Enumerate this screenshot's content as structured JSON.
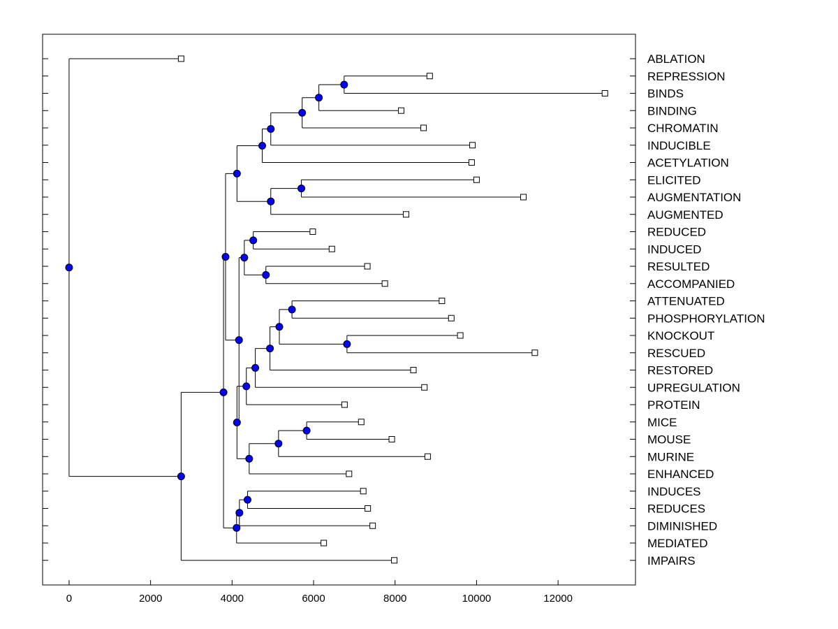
{
  "chart_data": {
    "type": "dendrogram",
    "orientation": "horizontal",
    "xlim": [
      -650,
      13900
    ],
    "x_ticks": [
      "0",
      "2000",
      "4000",
      "6000",
      "8000",
      "10000",
      "12000"
    ],
    "x_tick_values": [
      0,
      2000,
      4000,
      6000,
      8000,
      10000,
      12000
    ],
    "leaves": [
      {
        "label": "ABLATION",
        "x": 2750
      },
      {
        "label": "REPRESSION",
        "x": 8850
      },
      {
        "label": "BINDS",
        "x": 13150
      },
      {
        "label": "BINDING",
        "x": 8150
      },
      {
        "label": "CHROMATIN",
        "x": 8700
      },
      {
        "label": "INDUCIBLE",
        "x": 9900
      },
      {
        "label": "ACETYLATION",
        "x": 9880
      },
      {
        "label": "ELICITED",
        "x": 10000
      },
      {
        "label": "AUGMENTATION",
        "x": 11150
      },
      {
        "label": "AUGMENTED",
        "x": 8270
      },
      {
        "label": "REDUCED",
        "x": 5980
      },
      {
        "label": "INDUCED",
        "x": 6450
      },
      {
        "label": "RESULTED",
        "x": 7320
      },
      {
        "label": "ACCOMPANIED",
        "x": 7750
      },
      {
        "label": "ATTENUATED",
        "x": 9150
      },
      {
        "label": "PHOSPHORYLATION",
        "x": 9380
      },
      {
        "label": "KNOCKOUT",
        "x": 9600
      },
      {
        "label": "RESCUED",
        "x": 11430
      },
      {
        "label": "RESTORED",
        "x": 8450
      },
      {
        "label": "UPREGULATION",
        "x": 8720
      },
      {
        "label": "PROTEIN",
        "x": 6760
      },
      {
        "label": "MICE",
        "x": 7170
      },
      {
        "label": "MOUSE",
        "x": 7920
      },
      {
        "label": "MURINE",
        "x": 8800
      },
      {
        "label": "ENHANCED",
        "x": 6870
      },
      {
        "label": "INDUCES",
        "x": 7220
      },
      {
        "label": "REDUCES",
        "x": 7330
      },
      {
        "label": "DIMINISHED",
        "x": 7450
      },
      {
        "label": "MEDIATED",
        "x": 6250
      },
      {
        "label": "IMPAIRS",
        "x": 7980
      }
    ],
    "merges": [
      {
        "id": "n1",
        "x": 6750,
        "children": [
          "l1",
          "l2"
        ]
      },
      {
        "id": "n2",
        "x": 6130,
        "children": [
          "n1",
          "l3"
        ]
      },
      {
        "id": "n3",
        "x": 5720,
        "children": [
          "n2",
          "l4"
        ]
      },
      {
        "id": "n4",
        "x": 4950,
        "children": [
          "n3",
          "l5"
        ]
      },
      {
        "id": "n5",
        "x": 4740,
        "children": [
          "n4",
          "l6"
        ]
      },
      {
        "id": "n6",
        "x": 5700,
        "children": [
          "l7",
          "l8"
        ]
      },
      {
        "id": "n7",
        "x": 4950,
        "children": [
          "n6",
          "l9"
        ]
      },
      {
        "id": "n8",
        "x": 4120,
        "children": [
          "n5",
          "n7"
        ]
      },
      {
        "id": "n9",
        "x": 4520,
        "children": [
          "l10",
          "l11"
        ]
      },
      {
        "id": "n10",
        "x": 4830,
        "children": [
          "l12",
          "l13"
        ]
      },
      {
        "id": "n11",
        "x": 4300,
        "children": [
          "n9",
          "n10"
        ]
      },
      {
        "id": "n12",
        "x": 5470,
        "children": [
          "l14",
          "l15"
        ]
      },
      {
        "id": "n13",
        "x": 6820,
        "children": [
          "l16",
          "l17"
        ]
      },
      {
        "id": "n14",
        "x": 5160,
        "children": [
          "n12",
          "n13"
        ]
      },
      {
        "id": "n15",
        "x": 4930,
        "children": [
          "n14",
          "l18"
        ]
      },
      {
        "id": "n16",
        "x": 4570,
        "children": [
          "n15",
          "l19"
        ]
      },
      {
        "id": "n17",
        "x": 4350,
        "children": [
          "n16",
          "l20"
        ]
      },
      {
        "id": "n18",
        "x": 5830,
        "children": [
          "l21",
          "l22"
        ]
      },
      {
        "id": "n19",
        "x": 5140,
        "children": [
          "n18",
          "l23"
        ]
      },
      {
        "id": "n20",
        "x": 4420,
        "children": [
          "n19",
          "l24"
        ]
      },
      {
        "id": "n21",
        "x": 4120,
        "children": [
          "n17",
          "n20"
        ]
      },
      {
        "id": "n22",
        "x": 4170,
        "children": [
          "n11",
          "n21"
        ]
      },
      {
        "id": "n23",
        "x": 3840,
        "children": [
          "n8",
          "n22"
        ]
      },
      {
        "id": "n24",
        "x": 4380,
        "children": [
          "l25",
          "l26"
        ]
      },
      {
        "id": "n25",
        "x": 4180,
        "children": [
          "n24",
          "l27"
        ]
      },
      {
        "id": "n26",
        "x": 4110,
        "children": [
          "n25",
          "l28"
        ]
      },
      {
        "id": "n27",
        "x": 3790,
        "children": [
          "n23",
          "n26"
        ]
      },
      {
        "id": "n28",
        "x": 2750,
        "children": [
          "n27",
          "l29"
        ]
      },
      {
        "id": "n29",
        "x": 0,
        "children": [
          "l0",
          "n28"
        ]
      }
    ],
    "colors": {
      "node_fill": "#0000ff",
      "line": "#000000",
      "leaf_fill": "#ffffff"
    }
  }
}
